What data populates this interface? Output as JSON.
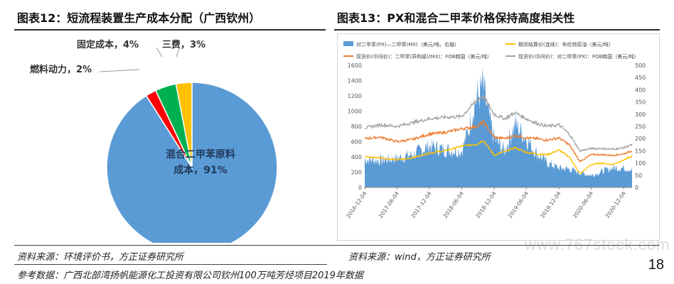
{
  "left_panel": {
    "title": "图表12：短流程装置生产成本分配（广西钦州）"
  },
  "right_panel": {
    "title": "图表13：PX和混合二甲苯价格保持高度相关性"
  },
  "footer": {
    "source_left": "资料来源：环境评价书，方正证券研究所",
    "source_right": "资料来源：wind，方正证券研究所",
    "reference": "参考数据：广西北部湾扬帆能源化工投资有限公司钦州100万吨芳烃项目2019年数据",
    "page_number": "18",
    "watermark": "www.767stock.com"
  },
  "chart_data": [
    {
      "type": "pie",
      "slices": [
        {
          "label": "混合二甲苯原料成本",
          "value": 91,
          "display": "91%",
          "color": "#5b9bd5"
        },
        {
          "label": "燃料动力",
          "value": 2,
          "display": "2%",
          "color": "#ff0000"
        },
        {
          "label": "固定成本",
          "value": 4,
          "display": "4%",
          "color": "#00b050"
        },
        {
          "label": "三费",
          "value": 3,
          "display": "3%",
          "color": "#ffc000"
        }
      ]
    },
    {
      "type": "line",
      "x_ticks": [
        "2016-12-04",
        "2017-06-04",
        "2017-12-04",
        "2018-06-04",
        "2018-12-04",
        "2019-06-04",
        "2019-12-04",
        "2020-06-04",
        "2020-12-04"
      ],
      "x_range": [
        "2016-12-04",
        "2021-01-20"
      ],
      "ylim_left": [
        0,
        1600
      ],
      "y_ticks_left": [
        0,
        200,
        400,
        600,
        800,
        1000,
        1200,
        1400,
        1600
      ],
      "ylim_right": [
        0,
        500
      ],
      "y_ticks_right": [
        0,
        50,
        100,
        150,
        200,
        250,
        300,
        350,
        400,
        450,
        500
      ],
      "legend_position": "top",
      "series": [
        {
          "name": "对二甲苯(PX)—二甲苯(MX)（美元/吨，右轴）",
          "axis": "right",
          "kind": "area",
          "color": "#5b9bd5",
          "x": [
            "2016-12-04",
            "2017-03-01",
            "2017-06-04",
            "2017-09-01",
            "2017-12-04",
            "2018-03-01",
            "2018-06-04",
            "2018-07-15",
            "2018-08-15",
            "2018-09-10",
            "2018-10-01",
            "2018-11-01",
            "2018-12-04",
            "2019-02-01",
            "2019-04-01",
            "2019-06-04",
            "2019-08-01",
            "2019-10-01",
            "2019-12-04",
            "2020-02-01",
            "2020-04-01",
            "2020-06-04",
            "2020-08-01",
            "2020-10-01",
            "2020-12-04",
            "2021-01-20"
          ],
          "y": [
            115,
            110,
            120,
            135,
            170,
            155,
            150,
            240,
            350,
            380,
            420,
            300,
            200,
            150,
            260,
            200,
            140,
            100,
            80,
            75,
            60,
            50,
            65,
            80,
            80,
            75
          ]
        },
        {
          "name": "期货结算价(连续)：布伦特原油（美元/吨）",
          "axis": "left",
          "kind": "line",
          "color": "#ffc000",
          "x": [
            "2016-12-04",
            "2017-03-01",
            "2017-06-04",
            "2017-09-01",
            "2017-12-04",
            "2018-03-01",
            "2018-06-04",
            "2018-09-01",
            "2018-10-04",
            "2018-12-04",
            "2019-02-01",
            "2019-04-01",
            "2019-06-04",
            "2019-08-01",
            "2019-10-01",
            "2019-12-04",
            "2020-02-01",
            "2020-04-01",
            "2020-06-04",
            "2020-08-01",
            "2020-10-01",
            "2020-12-04",
            "2021-01-20"
          ],
          "y": [
            400,
            390,
            360,
            390,
            450,
            480,
            540,
            570,
            620,
            420,
            470,
            520,
            460,
            440,
            430,
            490,
            400,
            180,
            300,
            320,
            300,
            360,
            410
          ]
        },
        {
          "name": "现货价(中间价)：二甲苯(异构级)(MX)：FOB韩国（美元/吨）",
          "axis": "left",
          "kind": "line",
          "color": "#ed7d31",
          "x": [
            "2016-12-04",
            "2017-03-01",
            "2017-06-04",
            "2017-09-01",
            "2017-12-04",
            "2018-03-01",
            "2018-06-04",
            "2018-09-01",
            "2018-10-04",
            "2018-12-04",
            "2019-02-01",
            "2019-04-01",
            "2019-06-04",
            "2019-08-01",
            "2019-10-01",
            "2019-12-04",
            "2020-02-01",
            "2020-04-01",
            "2020-06-04",
            "2020-08-01",
            "2020-10-01",
            "2020-12-04",
            "2021-01-20"
          ],
          "y": [
            640,
            660,
            600,
            630,
            700,
            720,
            770,
            800,
            860,
            660,
            640,
            680,
            650,
            640,
            620,
            650,
            560,
            340,
            430,
            430,
            420,
            440,
            480
          ]
        },
        {
          "name": "现货价(中间价)：对二甲苯(PX)：FOB韩国（美元/吨）",
          "axis": "left",
          "kind": "line",
          "color": "#a5a5a5",
          "x": [
            "2016-12-04",
            "2017-03-01",
            "2017-06-04",
            "2017-09-01",
            "2017-12-04",
            "2018-03-01",
            "2018-06-04",
            "2018-09-01",
            "2018-10-04",
            "2018-12-04",
            "2019-02-01",
            "2019-04-01",
            "2019-06-04",
            "2019-08-01",
            "2019-10-01",
            "2019-12-04",
            "2020-02-01",
            "2020-04-01",
            "2020-06-04",
            "2020-08-01",
            "2020-10-01",
            "2020-12-04",
            "2021-01-20"
          ],
          "y": [
            780,
            820,
            800,
            850,
            900,
            920,
            930,
            1150,
            1200,
            960,
            900,
            980,
            900,
            840,
            800,
            820,
            700,
            480,
            510,
            510,
            500,
            520,
            560
          ]
        }
      ]
    }
  ]
}
